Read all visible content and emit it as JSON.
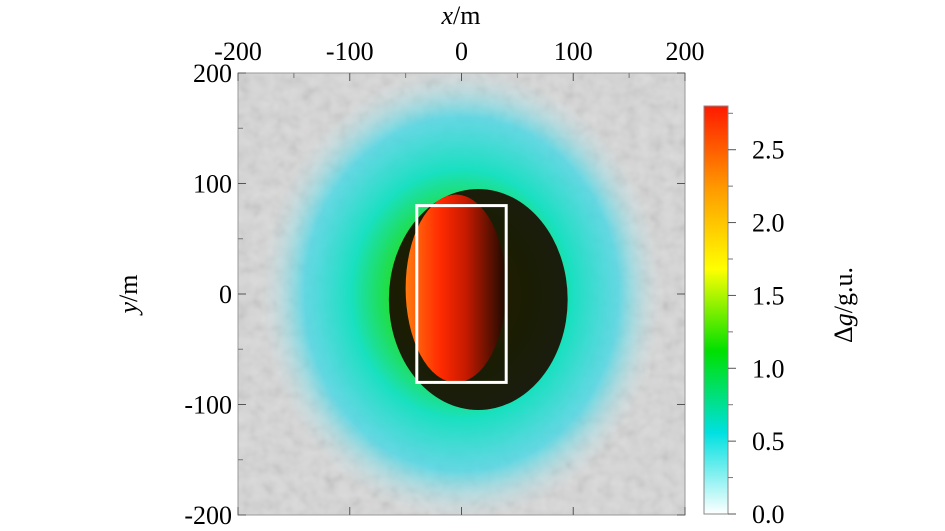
{
  "chart_data": {
    "type": "heatmap",
    "xlabel": {
      "var": "x",
      "unit": "/m"
    },
    "ylabel": {
      "var": "y",
      "unit": "/m"
    },
    "xlim": [
      -200,
      200
    ],
    "ylim": [
      -200,
      200
    ],
    "xticks": [
      -200,
      -100,
      0,
      100,
      200
    ],
    "yticks": [
      -200,
      -100,
      0,
      100,
      200
    ],
    "colorbar": {
      "label_symbol": "Δ",
      "label_var": "g",
      "label_unit": "/g.u.",
      "range": [
        0,
        2.8
      ],
      "ticks": [
        0.0,
        0.5,
        1.0,
        1.5,
        2.0,
        2.5
      ],
      "tick_labels": [
        "0.0",
        "0.5",
        "1.0",
        "1.5",
        "2.0",
        "2.5"
      ],
      "colors": [
        "#ffffff",
        "#00e0e0",
        "#00e000",
        "#ffff00",
        "#ff9900",
        "#ff1a00"
      ]
    },
    "anomaly": {
      "center": [
        0,
        0
      ],
      "radius_x": 180,
      "radius_y": 205,
      "peak_value": 2.8,
      "core_x_range": [
        -40,
        40
      ],
      "core_y_range": [
        -80,
        80
      ]
    },
    "outline_rect": {
      "x": [
        -40,
        40
      ],
      "y": [
        -80,
        80
      ],
      "color": "#ffffff"
    },
    "background_color": "#d8d8d8"
  }
}
